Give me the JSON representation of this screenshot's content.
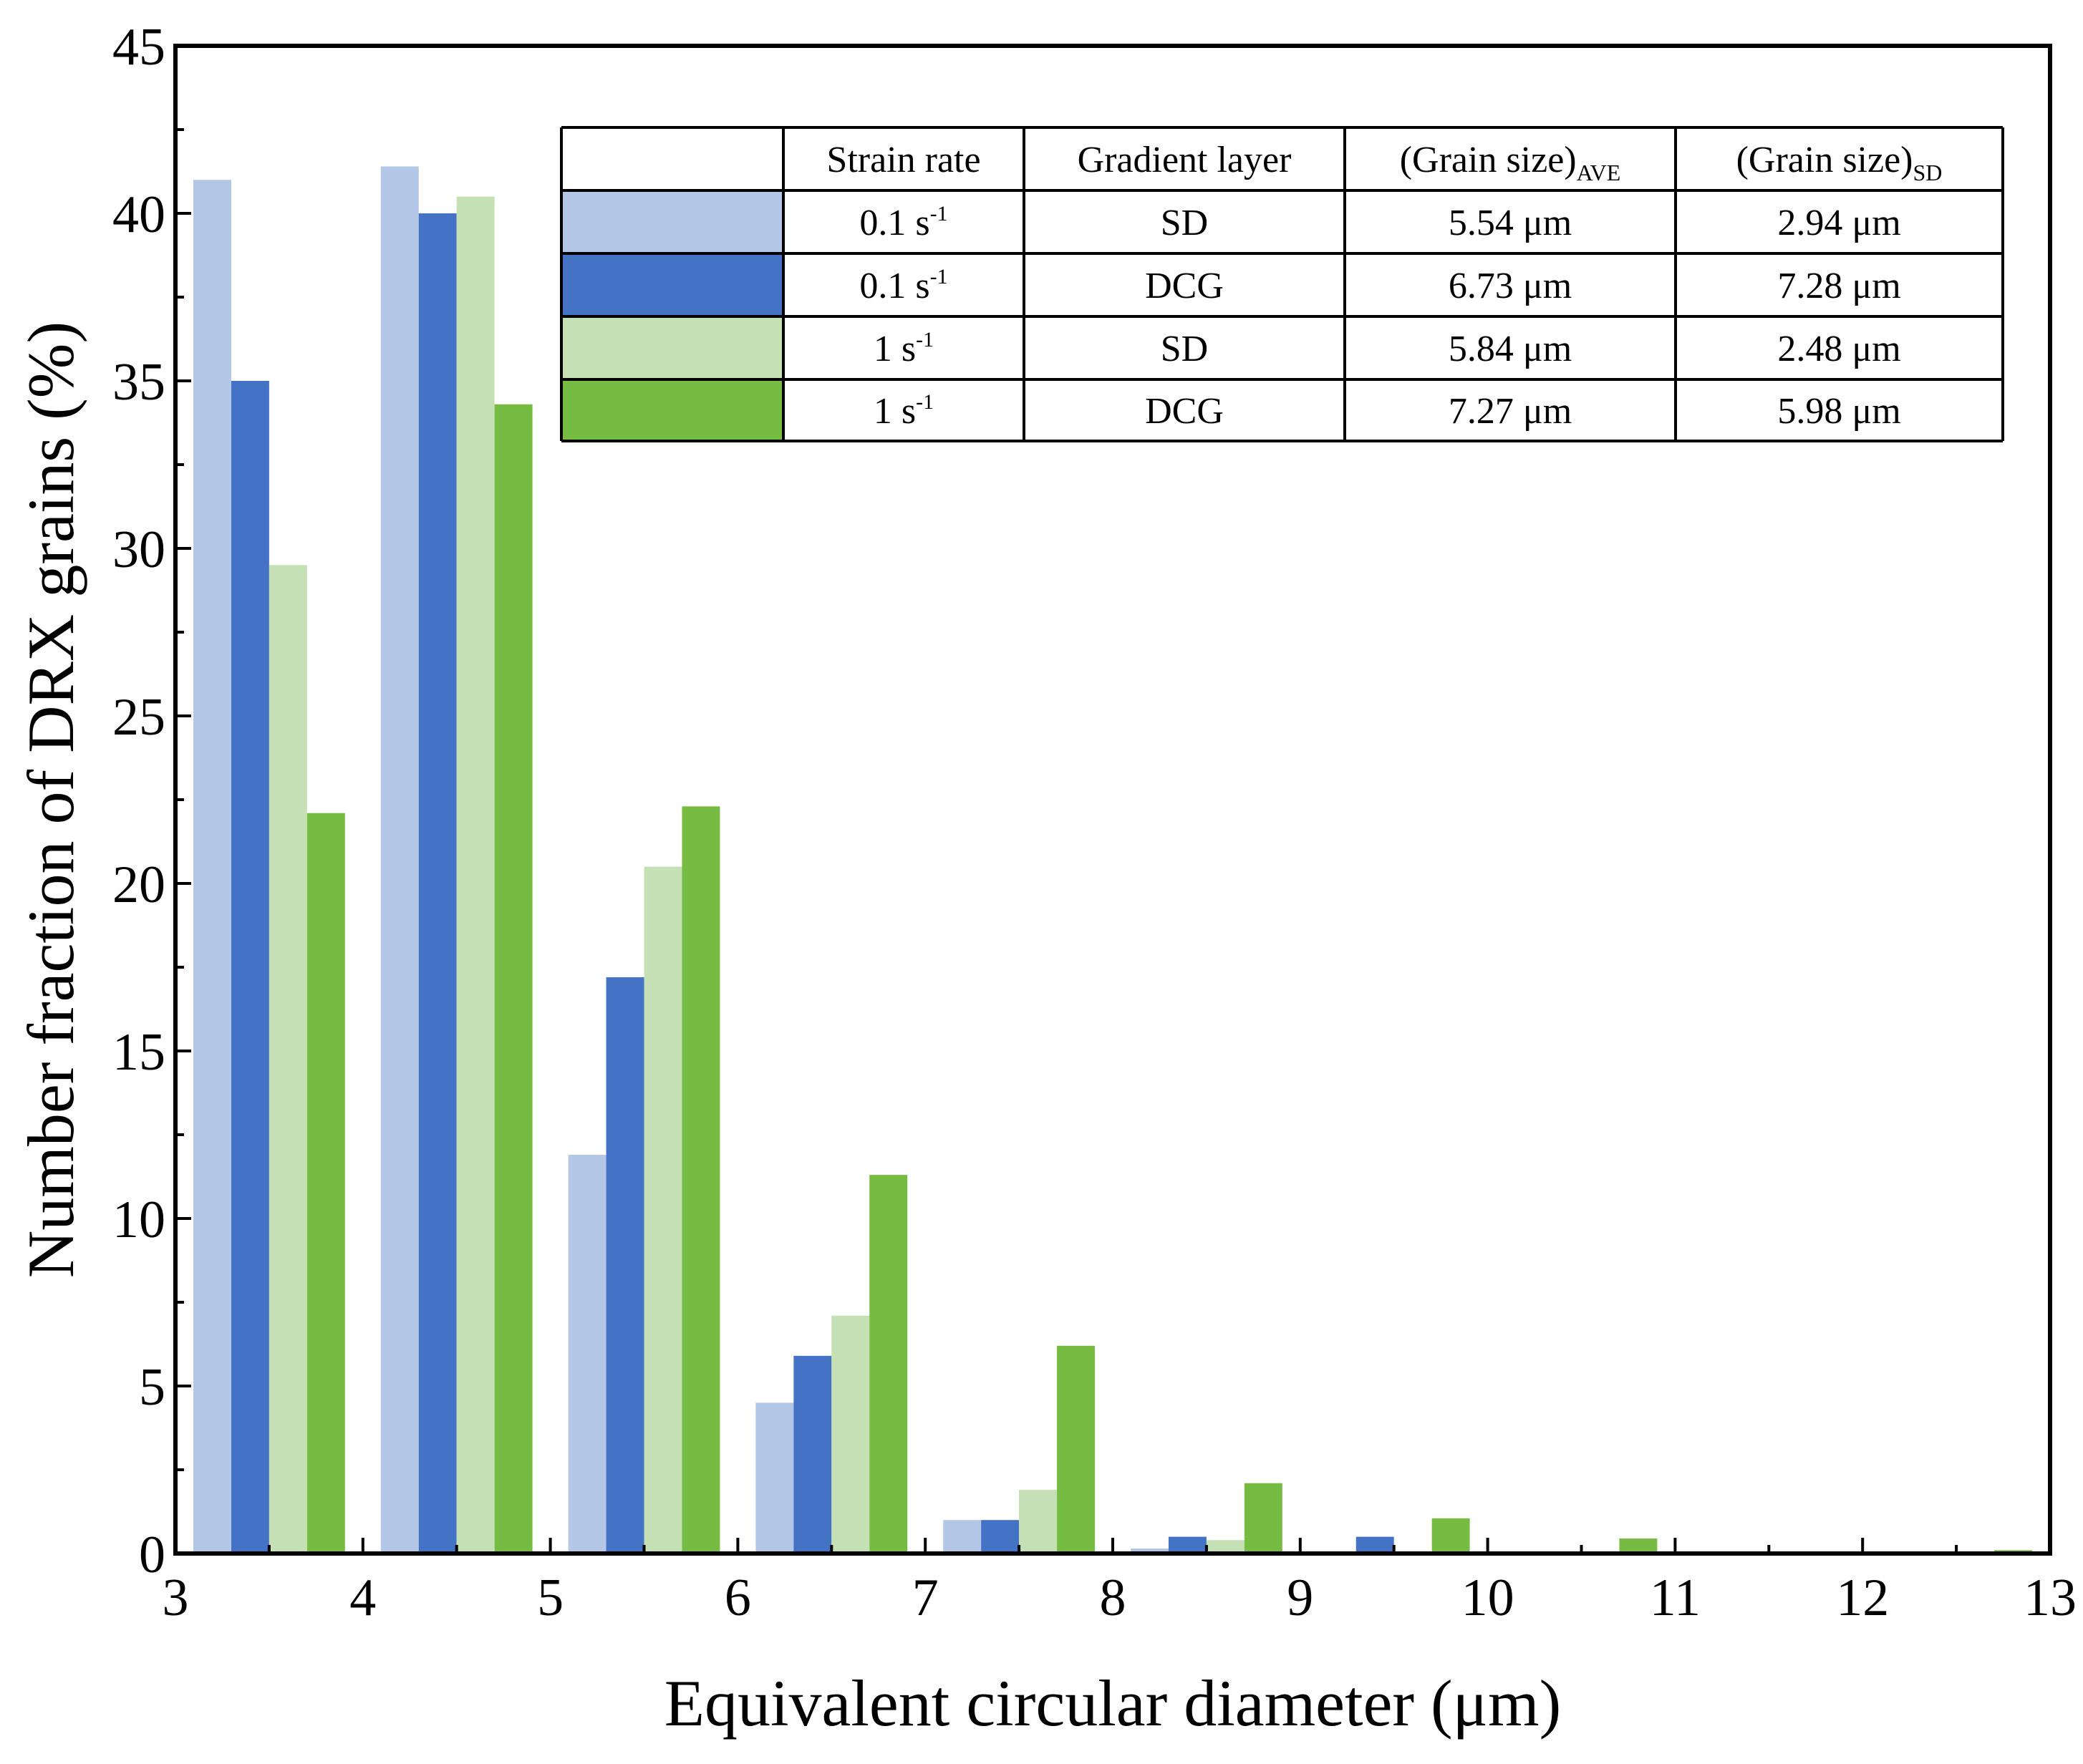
{
  "chart_data": {
    "type": "bar",
    "title": "",
    "xlabel": "Equivalent circular diameter (μm)",
    "ylabel": "Number fraction of DRX grains (%)",
    "xlim": [
      3,
      13
    ],
    "ylim": [
      0,
      45
    ],
    "x_ticks": [
      "3",
      "4",
      "5",
      "6",
      "7",
      "8",
      "9",
      "10",
      "11",
      "12",
      "13"
    ],
    "y_ticks": [
      "0",
      "5",
      "10",
      "15",
      "20",
      "25",
      "30",
      "35",
      "40",
      "45"
    ],
    "bins": [
      {
        "start": 3,
        "end": 4
      },
      {
        "start": 4,
        "end": 5
      },
      {
        "start": 5,
        "end": 6
      },
      {
        "start": 6,
        "end": 7
      },
      {
        "start": 7,
        "end": 8
      },
      {
        "start": 8,
        "end": 9
      },
      {
        "start": 9,
        "end": 10
      },
      {
        "start": 10,
        "end": 11
      },
      {
        "start": 11,
        "end": 12
      },
      {
        "start": 12,
        "end": 13
      }
    ],
    "series": [
      {
        "name": "0.1 s-1 SD",
        "color": "#b4c7e7",
        "values": [
          41.0,
          41.4,
          11.9,
          4.5,
          1.0,
          0.15,
          0,
          0,
          0,
          0
        ]
      },
      {
        "name": "0.1 s-1 DCG",
        "color": "#4472c4",
        "values": [
          35.0,
          40.0,
          17.2,
          5.9,
          1.0,
          0.5,
          0.5,
          0,
          0.05,
          0
        ]
      },
      {
        "name": "1 s-1 SD",
        "color": "#c5e0b4",
        "values": [
          29.5,
          40.5,
          20.5,
          7.1,
          1.9,
          0.4,
          0,
          0,
          0,
          0
        ]
      },
      {
        "name": "1 s-1 DCG",
        "color": "#77bc42",
        "values": [
          22.1,
          34.3,
          22.3,
          11.3,
          6.2,
          2.1,
          1.05,
          0.45,
          0,
          0.1
        ]
      }
    ],
    "legend_table": {
      "position": "top-right",
      "header": {
        "strain_rate": "Strain rate",
        "gradient_layer": "Gradient layer",
        "grain_ave_base": "(Grain size)",
        "grain_ave_sub": "AVE",
        "grain_sd_base": "(Grain size)",
        "grain_sd_sub": "SD"
      },
      "rows": [
        {
          "color": "#b4c7e7",
          "rate_base": "0.1 s",
          "rate_sup": "-1",
          "layer": "SD",
          "ave": "5.54 μm",
          "sd": "2.94 μm"
        },
        {
          "color": "#4472c4",
          "rate_base": "0.1 s",
          "rate_sup": "-1",
          "layer": "DCG",
          "ave": "6.73 μm",
          "sd": "7.28 μm"
        },
        {
          "color": "#c5e0b4",
          "rate_base": "1 s",
          "rate_sup": "-1",
          "layer": "SD",
          "ave": "5.84 μm",
          "sd": "2.48 μm"
        },
        {
          "color": "#77bc42",
          "rate_base": "1 s",
          "rate_sup": "-1",
          "layer": "DCG",
          "ave": "7.27 μm",
          "sd": "5.98 μm"
        }
      ]
    }
  }
}
